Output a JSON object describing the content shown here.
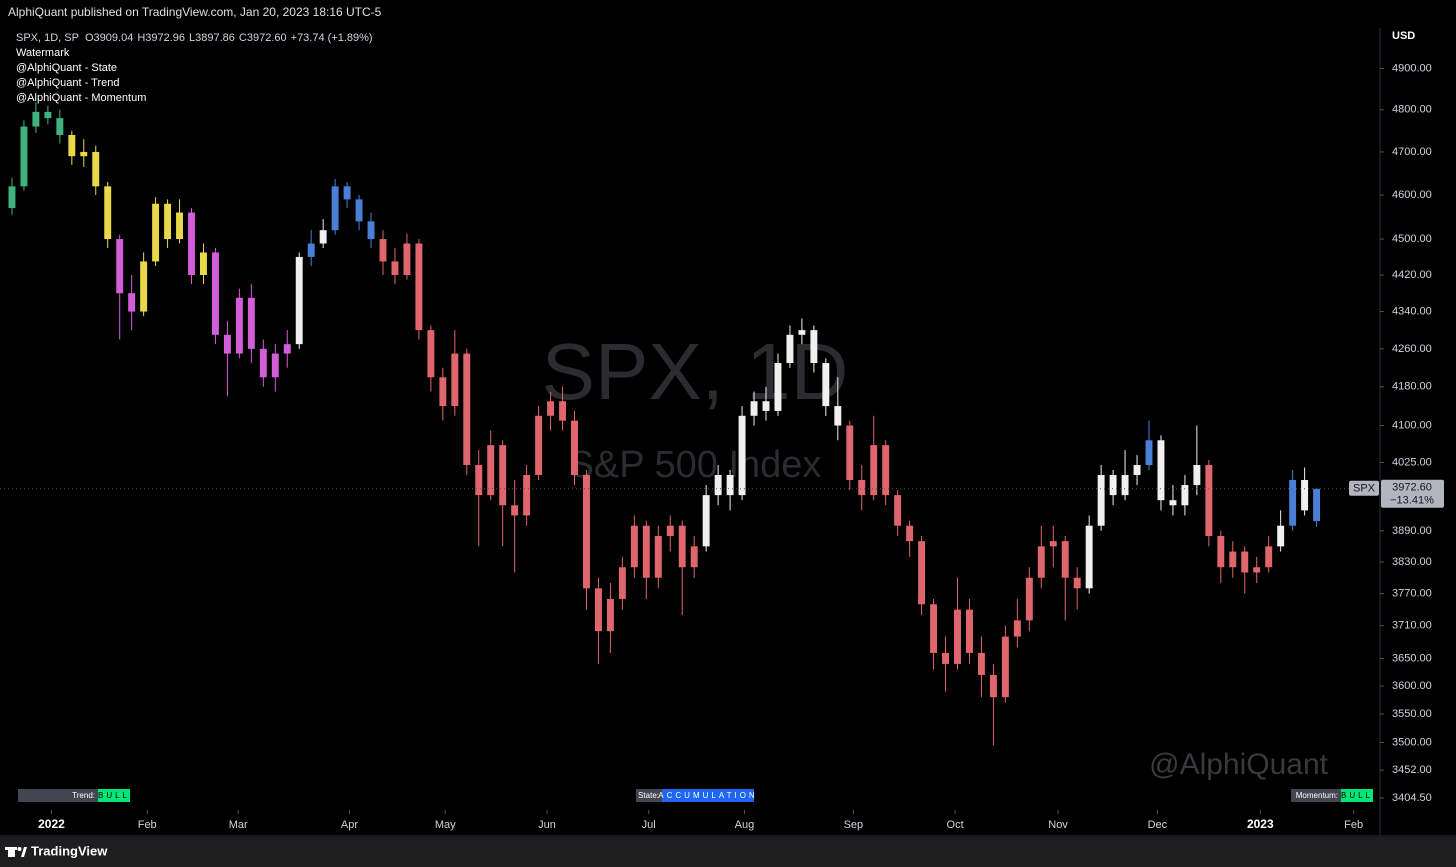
{
  "header": "AlphiQuant published on TradingView.com, Jan 20, 2023 18:16 UTC-5",
  "footer": "TradingView",
  "chart_data": {
    "type": "candlestick",
    "legend": {
      "symbol": "SPX, 1D, SP",
      "o": "O",
      "h": "H",
      "l": "L",
      "c": "C",
      "change": "+73.74 (+1.89%)",
      "indicators": [
        "Watermark",
        "@AlphiQuant - State",
        "@AlphiQuant - Trend",
        "@AlphiQuant - Momentum"
      ]
    },
    "watermark": {
      "title": "SPX, 1D",
      "subtitle": "S&P 500 Index",
      "author": "@AlphiQuant"
    },
    "currency": "USD",
    "price_tag": {
      "symbol": "SPX",
      "label": "3972.60",
      "change": "−13.41%"
    },
    "panels": [
      {
        "name": "Trend:",
        "value": "BULL",
        "color": "#00e676"
      },
      {
        "name": "State:",
        "value": "ACCUMULATION",
        "color": "#1e66f5"
      },
      {
        "name": "Momentum:",
        "value": "BULL",
        "color": "#00e676"
      }
    ],
    "log_scale": true,
    "grid": false,
    "ylim": [
      3384,
      5000
    ],
    "yticks": [
      {
        "value": 4900,
        "label": "4900.00"
      },
      {
        "value": 4800,
        "label": "4800.00"
      },
      {
        "value": 4700,
        "label": "4700.00"
      },
      {
        "value": 4600,
        "label": "4600.00"
      },
      {
        "value": 4500,
        "label": "4500.00"
      },
      {
        "value": 4420,
        "label": "4420.00"
      },
      {
        "value": 4340,
        "label": "4340.00"
      },
      {
        "value": 4260,
        "label": "4260.00"
      },
      {
        "value": 4180,
        "label": "4180.00"
      },
      {
        "value": 4100,
        "label": "4100.00"
      },
      {
        "value": 4025,
        "label": "4025.00"
      },
      {
        "value": 3890,
        "label": "3890.00"
      },
      {
        "value": 3830,
        "label": "3830.00"
      },
      {
        "value": 3770,
        "label": "3770.00"
      },
      {
        "value": 3710,
        "label": "3710.00"
      },
      {
        "value": 3650,
        "label": "3650.00"
      },
      {
        "value": 3600,
        "label": "3600.00"
      },
      {
        "value": 3550,
        "label": "3550.00"
      },
      {
        "value": 3500,
        "label": "3500.00"
      },
      {
        "value": 3452,
        "label": "3452.00"
      },
      {
        "value": 3404.5,
        "label": "3404.50"
      }
    ],
    "xlim": [
      -1,
      114.3
    ],
    "xticks": [
      {
        "value": 3.3,
        "label": "2022"
      },
      {
        "value": 11.3,
        "label": "Feb"
      },
      {
        "value": 18.9,
        "label": "Mar"
      },
      {
        "value": 28.2,
        "label": "Apr"
      },
      {
        "value": 36.2,
        "label": "May"
      },
      {
        "value": 44.7,
        "label": "Jun"
      },
      {
        "value": 53.2,
        "label": "Jul"
      },
      {
        "value": 61.2,
        "label": "Aug"
      },
      {
        "value": 70.3,
        "label": "Sep"
      },
      {
        "value": 78.8,
        "label": "Oct"
      },
      {
        "value": 87.4,
        "label": "Nov"
      },
      {
        "value": 95.7,
        "label": "Dec"
      },
      {
        "value": 104.3,
        "label": "2023"
      },
      {
        "value": 112.1,
        "label": "Feb"
      }
    ],
    "open": [
      4570,
      4620,
      4760,
      4795,
      4780,
      4740,
      4690,
      4700,
      4620,
      4500,
      4380,
      4340,
      4450,
      4580,
      4500,
      4560,
      4420,
      4470,
      4290,
      4250,
      4370,
      4260,
      4200,
      4250,
      4270,
      4460,
      4490,
      4520,
      4620,
      4590,
      4540,
      4500,
      4450,
      4420,
      4490,
      4300,
      4200,
      4140,
      4250,
      4020,
      3960,
      4060,
      3940,
      3920,
      4000,
      4120,
      4150,
      4110,
      4000,
      3780,
      3700,
      3760,
      3820,
      3900,
      3800,
      3880,
      3900,
      3820,
      3860,
      3960,
      4000,
      3960,
      4120,
      4150,
      4130,
      4230,
      4290,
      4300,
      4230,
      4140,
      4100,
      3990,
      3960,
      4060,
      3960,
      3900,
      3870,
      3750,
      3660,
      3640,
      3740,
      3660,
      3620,
      3580,
      3690,
      3720,
      3800,
      3860,
      3870,
      3800,
      3780,
      3900,
      4000,
      3960,
      4000,
      4020,
      4070,
      3950,
      3940,
      3980,
      4020,
      3880,
      3820,
      3850,
      3810,
      3820,
      3860,
      3900,
      3990,
      3909.04
    ],
    "high": [
      4640,
      4775,
      4818,
      4810,
      4800,
      4750,
      4730,
      4715,
      4630,
      4510,
      4420,
      4470,
      4595,
      4590,
      4590,
      4570,
      4490,
      4480,
      4320,
      4390,
      4400,
      4280,
      4270,
      4300,
      4470,
      4520,
      4545,
      4637,
      4630,
      4600,
      4560,
      4520,
      4480,
      4512,
      4500,
      4310,
      4220,
      4300,
      4260,
      4050,
      4090,
      4070,
      3990,
      4020,
      4140,
      4170,
      4180,
      4130,
      4010,
      3800,
      3790,
      3840,
      3920,
      3910,
      3900,
      3920,
      3910,
      3880,
      3980,
      4020,
      4010,
      4140,
      4170,
      4180,
      4250,
      4310,
      4325,
      4310,
      4240,
      4200,
      4110,
      4020,
      4120,
      4070,
      3970,
      3910,
      3880,
      3760,
      3690,
      3800,
      3760,
      3690,
      3640,
      3710,
      3760,
      3820,
      3900,
      3900,
      3880,
      3820,
      3920,
      4020,
      4010,
      4050,
      4040,
      4110,
      4080,
      3980,
      4000,
      4100,
      4030,
      3890,
      3870,
      3860,
      3840,
      3880,
      3930,
      4010,
      4015,
      3972.96
    ],
    "low": [
      4555,
      4610,
      4745,
      4765,
      4720,
      4670,
      4665,
      4600,
      4480,
      4280,
      4300,
      4330,
      4440,
      4480,
      4490,
      4400,
      4400,
      4270,
      4160,
      4240,
      4230,
      4180,
      4170,
      4220,
      4260,
      4440,
      4480,
      4510,
      4570,
      4520,
      4480,
      4420,
      4400,
      4410,
      4280,
      4170,
      4110,
      4120,
      4000,
      3860,
      3950,
      3860,
      3810,
      3900,
      3990,
      4090,
      4090,
      3980,
      3740,
      3640,
      3660,
      3740,
      3800,
      3760,
      3780,
      3850,
      3730,
      3800,
      3850,
      3940,
      3930,
      3950,
      4100,
      4110,
      4120,
      4220,
      4270,
      4210,
      4120,
      4070,
      3970,
      3930,
      3950,
      3940,
      3880,
      3840,
      3730,
      3630,
      3590,
      3630,
      3640,
      3580,
      3495,
      3570,
      3670,
      3700,
      3780,
      3820,
      3720,
      3740,
      3770,
      3890,
      3940,
      3950,
      3980,
      4010,
      3930,
      3920,
      3920,
      3960,
      3860,
      3790,
      3800,
      3770,
      3790,
      3810,
      3850,
      3890,
      3920,
      3897.86
    ],
    "close": [
      4620,
      4760,
      4795,
      4780,
      4740,
      4690,
      4700,
      4620,
      4500,
      4380,
      4340,
      4450,
      4580,
      4500,
      4560,
      4420,
      4470,
      4290,
      4250,
      4370,
      4260,
      4200,
      4250,
      4270,
      4460,
      4490,
      4520,
      4620,
      4590,
      4540,
      4500,
      4450,
      4420,
      4490,
      4300,
      4200,
      4140,
      4250,
      4020,
      3960,
      4060,
      3940,
      3920,
      4000,
      4120,
      4150,
      4110,
      4000,
      3780,
      3700,
      3760,
      3820,
      3900,
      3800,
      3880,
      3900,
      3820,
      3860,
      3960,
      4000,
      3960,
      4120,
      4150,
      4130,
      4230,
      4290,
      4300,
      4230,
      4140,
      4100,
      3990,
      3960,
      4060,
      3960,
      3900,
      3870,
      3750,
      3660,
      3640,
      3740,
      3660,
      3620,
      3580,
      3690,
      3720,
      3800,
      3860,
      3870,
      3800,
      3780,
      3900,
      4000,
      3960,
      4000,
      4020,
      4070,
      3950,
      3940,
      3980,
      4020,
      3880,
      3820,
      3850,
      3810,
      3820,
      3860,
      3900,
      3990,
      3930,
      3972.6
    ],
    "colors": [
      "#3fb27f",
      "#3fb27f",
      "#3fb27f",
      "#3fb27f",
      "#3fb27f",
      "#e8d84a",
      "#e8d84a",
      "#e8d84a",
      "#e8d84a",
      "#d45ed9",
      "#d45ed9",
      "#e8d84a",
      "#e8d84a",
      "#e8d84a",
      "#e8d84a",
      "#d45ed9",
      "#e8d84a",
      "#d45ed9",
      "#d45ed9",
      "#d45ed9",
      "#d45ed9",
      "#d45ed9",
      "#d45ed9",
      "#d45ed9",
      "#f0f0f0",
      "#4a7fd6",
      "#f0f0f0",
      "#4a7fd6",
      "#4a7fd6",
      "#4a7fd6",
      "#4a7fd6",
      "#e0666e",
      "#e0666e",
      "#e0666e",
      "#e0666e",
      "#e0666e",
      "#e0666e",
      "#e0666e",
      "#e0666e",
      "#e0666e",
      "#e0666e",
      "#e0666e",
      "#e0666e",
      "#e0666e",
      "#e0666e",
      "#e0666e",
      "#e0666e",
      "#e0666e",
      "#e0666e",
      "#e0666e",
      "#e0666e",
      "#e0666e",
      "#e0666e",
      "#e0666e",
      "#e0666e",
      "#e0666e",
      "#e0666e",
      "#e0666e",
      "#f0f0f0",
      "#f0f0f0",
      "#f0f0f0",
      "#f0f0f0",
      "#f0f0f0",
      "#f0f0f0",
      "#f0f0f0",
      "#f0f0f0",
      "#f0f0f0",
      "#f0f0f0",
      "#f0f0f0",
      "#f0f0f0",
      "#e0666e",
      "#e0666e",
      "#e0666e",
      "#e0666e",
      "#e0666e",
      "#e0666e",
      "#e0666e",
      "#e0666e",
      "#e0666e",
      "#e0666e",
      "#e0666e",
      "#e0666e",
      "#e0666e",
      "#e0666e",
      "#e0666e",
      "#e0666e",
      "#e0666e",
      "#e0666e",
      "#e0666e",
      "#e0666e",
      "#f0f0f0",
      "#f0f0f0",
      "#f0f0f0",
      "#f0f0f0",
      "#f0f0f0",
      "#4a7fd6",
      "#f0f0f0",
      "#f0f0f0",
      "#f0f0f0",
      "#f0f0f0",
      "#e0666e",
      "#e0666e",
      "#e0666e",
      "#e0666e",
      "#e0666e",
      "#e0666e",
      "#f0f0f0",
      "#4a7fd6",
      "#f0f0f0",
      "#4a7fd6"
    ]
  }
}
